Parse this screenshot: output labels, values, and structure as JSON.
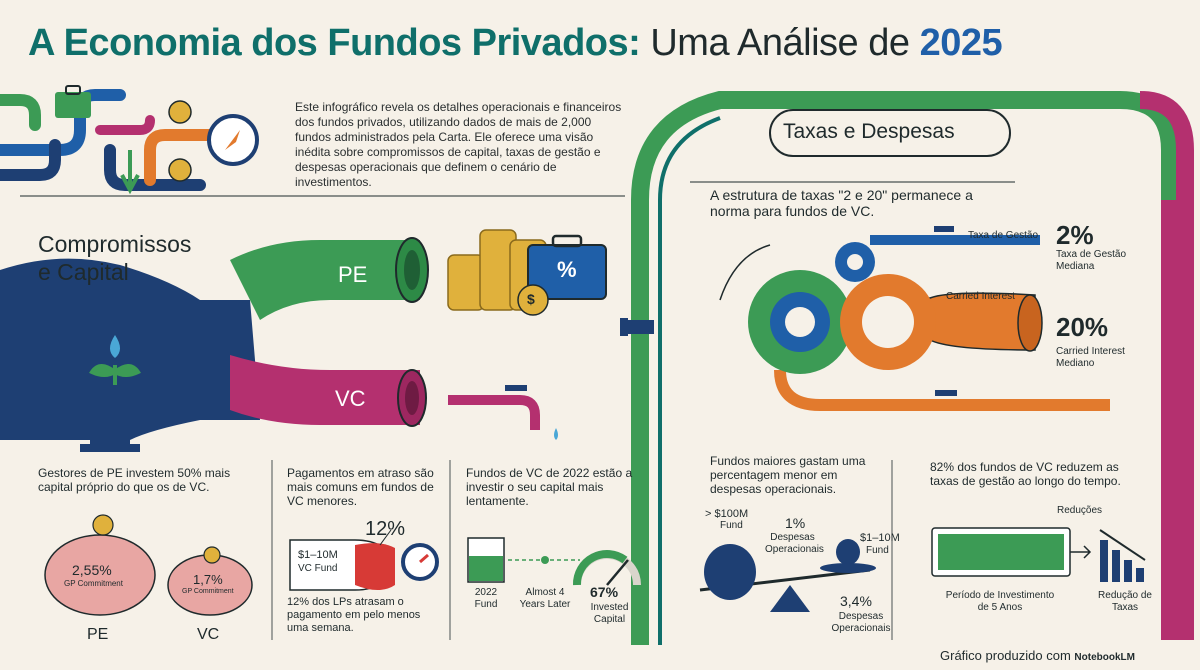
{
  "title": {
    "part1": "A Economia dos Fundos Privados:",
    "part2": "Uma Análise de",
    "part3": "2025"
  },
  "intro": "Este infográfico revela os detalhes operacionais e financeiros dos fundos privados, utilizando dados de mais de 2,000 fundos administrados pela Carta. Ele oferece uma visão inédita sobre compromissos de capital, taxas de gestão e despesas operacionais que definem o cenário de investimentos.",
  "left": {
    "heading_line1": "Compromissos",
    "heading_line2": "e Capital",
    "pe_label": "PE",
    "vc_label": "VC",
    "pct_symbol": "%",
    "coin_symbol": "$",
    "stat1": "Gestores de PE investem 50% mais capital próprio do que os de VC.",
    "pe_pct": "2,55%",
    "pe_sub": "GP Commitment",
    "vc_pct": "1,7%",
    "vc_sub": "GP Commitment",
    "pe_caption": "PE",
    "vc_caption": "VC",
    "stat2": "Pagamentos em atraso são mais comuns em fundos de VC menores.",
    "late_pct": "12%",
    "fund_label": "$1–10M",
    "fund_label2": "VC Fund",
    "late_note": "12% dos LPs atrasam o pagamento em pelo menos uma semana.",
    "stat3": "Fundos de VC de 2022 estão a investir o seu capital mais lentamente.",
    "fund_year": "2022",
    "fund_word": "Fund",
    "almost": "Almost 4",
    "years_later": "Years Later",
    "invested_pct": "67%",
    "invested_label": "Invested",
    "capital_label": "Capital"
  },
  "right": {
    "heading": "Taxas e Despesas",
    "subtitle": "A estrutura de taxas \"2 e 20\" permanece a norma para fundos de VC.",
    "fee_pipe_label": "Taxa de Gestão",
    "fee_pct": "2%",
    "fee_sub1": "Taxa de Gestão",
    "fee_sub2": "Mediana",
    "carry_pipe_label": "Carried Interest",
    "carry_pct": "20%",
    "carry_sub1": "Carried Interest",
    "carry_sub2": "Mediano",
    "stat4": "Fundos maiores gastam uma percentagem menor em despesas operacionais.",
    "big_fund1": "> $100M",
    "big_fund2": "Fund",
    "big_pct": "1%",
    "big_sub1": "Despesas",
    "big_sub2": "Operacionais",
    "small_fund1": "$1–10M",
    "small_fund2": "Fund",
    "small_pct": "3,4%",
    "small_sub1": "Despesas",
    "small_sub2": "Operacionais",
    "stat5": "82% dos fundos de VC reduzem as taxas de gestão ao longo do tempo.",
    "reductions": "Reduções",
    "period1": "Período de Investimento",
    "period2": "de 5 Anos",
    "reduction1": "Redução de",
    "reduction2": "Taxas"
  },
  "footer": {
    "text": "Gráfico produzido com",
    "brand": "NotebookLM"
  },
  "colors": {
    "teal": "#0f6f6a",
    "blue": "#1f5fa8",
    "navy": "#1e3f73",
    "green": "#3c9b55",
    "magenta": "#b4306f",
    "orange": "#e27a2d",
    "gold": "#e0b13c",
    "pink": "#e8a6a3"
  }
}
